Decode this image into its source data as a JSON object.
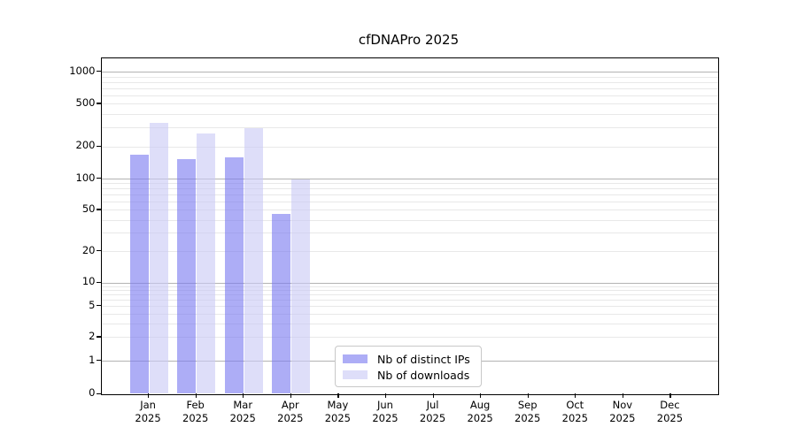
{
  "chart_data": {
    "type": "bar",
    "title": "cfDNAPro 2025",
    "categories": [
      "Jan",
      "Feb",
      "Mar",
      "Apr",
      "May",
      "Jun",
      "Jul",
      "Aug",
      "Sep",
      "Oct",
      "Nov",
      "Dec"
    ],
    "year_label": "2025",
    "series": [
      {
        "name": "Nb of distinct IPs",
        "color": "#7b7bf0",
        "opacity": 0.62,
        "values": [
          166,
          152,
          158,
          46,
          null,
          null,
          null,
          null,
          null,
          null,
          null,
          null
        ]
      },
      {
        "name": "Nb of downloads",
        "color": "#c9c9f6",
        "opacity": 0.62,
        "values": [
          333,
          264,
          295,
          98,
          null,
          null,
          null,
          null,
          null,
          null,
          null,
          null
        ]
      }
    ],
    "xlabel": "",
    "ylabel": "",
    "yscale": "symlog",
    "ylim": [
      0,
      1500
    ],
    "yticks": [
      0,
      1,
      2,
      5,
      10,
      20,
      50,
      100,
      200,
      500,
      1000
    ],
    "grid": "both",
    "legend_position": "bottom-center"
  },
  "style": {
    "grid_major_color": "#b3b3b3",
    "grid_minor_color": "#e8e8e8",
    "axis_color": "#000000",
    "background_color": "#ffffff"
  }
}
